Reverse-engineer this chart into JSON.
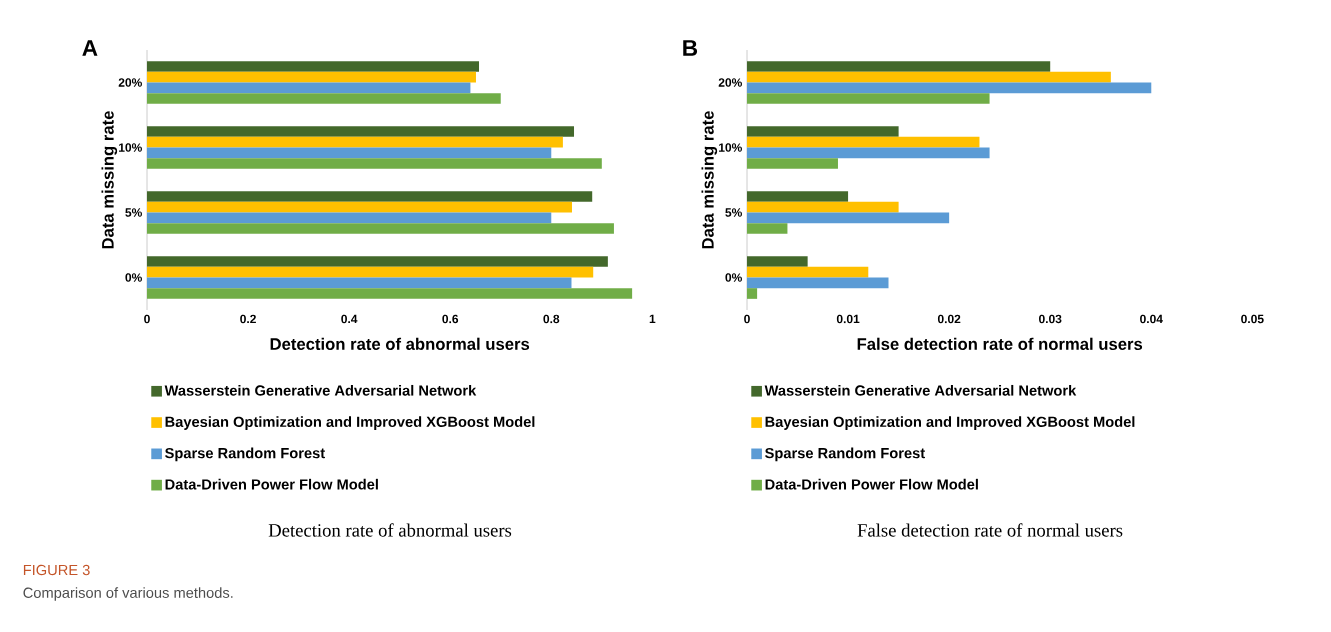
{
  "chart_data": [
    {
      "type": "bar",
      "orientation": "horizontal",
      "title": "A",
      "subtitle": "Detection rate of abnormal users",
      "xlabel": "Detection rate of abnormal users",
      "ylabel": "Data missing rate",
      "categories": [
        "20%",
        "10%",
        "5%",
        "0%"
      ],
      "xlim": [
        0,
        1
      ],
      "xticks": [
        0,
        0.2,
        0.4,
        0.6,
        0.8,
        1
      ],
      "legend": "bottom",
      "series": [
        {
          "name": "Wasserstein Generative Adversarial Network",
          "color": "#43682b",
          "values": [
            0.657,
            0.845,
            0.881,
            0.912
          ]
        },
        {
          "name": "Bayesian Optimization and Improved XGBoost Model",
          "color": "#ffc000",
          "values": [
            0.651,
            0.823,
            0.841,
            0.883
          ]
        },
        {
          "name": "Sparse Random Forest",
          "color": "#5b9bd5",
          "values": [
            0.64,
            0.8,
            0.8,
            0.84
          ]
        },
        {
          "name": "Data-Driven Power Flow Model",
          "color": "#70ad47",
          "values": [
            0.7,
            0.9,
            0.924,
            0.96
          ]
        }
      ],
      "annotations": [
        "FIGURE 3",
        "Comparison of various methods."
      ]
    },
    {
      "type": "bar",
      "orientation": "horizontal",
      "title": "B",
      "subtitle": "False detection rate of normal users",
      "xlabel": "False detection rate of normal users",
      "ylabel": "Data missing rate",
      "categories": [
        "20%",
        "10%",
        "5%",
        "0%"
      ],
      "xlim": [
        0,
        0.05
      ],
      "xticks": [
        0,
        0.01,
        0.02,
        0.03,
        0.04,
        0.05
      ],
      "legend": "bottom",
      "series": [
        {
          "name": "Wasserstein Generative Adversarial Network",
          "color": "#43682b",
          "values": [
            0.03,
            0.015,
            0.01,
            0.006
          ]
        },
        {
          "name": "Bayesian Optimization and Improved XGBoost Model",
          "color": "#ffc000",
          "values": [
            0.036,
            0.023,
            0.015,
            0.012
          ]
        },
        {
          "name": "Sparse Random Forest",
          "color": "#5b9bd5",
          "values": [
            0.04,
            0.024,
            0.02,
            0.014
          ]
        },
        {
          "name": "Data-Driven Power Flow Model",
          "color": "#70ad47",
          "values": [
            0.024,
            0.009,
            0.004,
            0.001
          ]
        }
      ]
    }
  ]
}
